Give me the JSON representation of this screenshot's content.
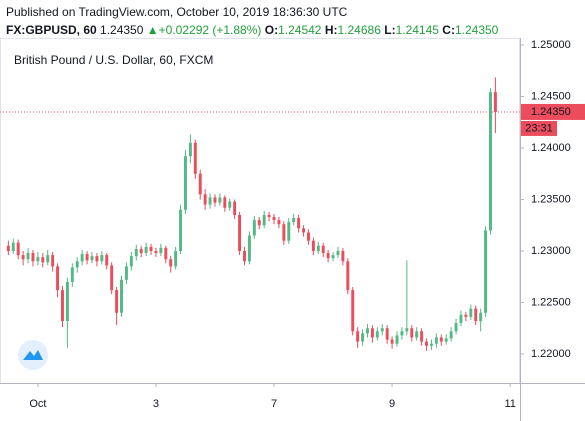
{
  "header": {
    "published": "Published on TradingView.com, October 10, 2019 18:36:30 UTC",
    "symbol": "FX:GBPUSD, 60",
    "last": "1.24350",
    "change": "+0.02292 (+1.88%)",
    "ohlc": [
      {
        "label": "O:",
        "value": "1.24542"
      },
      {
        "label": "H:",
        "value": "1.24686"
      },
      {
        "label": "L:",
        "value": "1.24145"
      },
      {
        "label": "C:",
        "value": "1.24350"
      }
    ]
  },
  "chart_data": {
    "type": "candlestick",
    "title": "British Pound / U.S. Dollar, 60, FXCM",
    "up_color": "#53b987",
    "down_color": "#eb4d5c",
    "x": [
      0,
      1,
      2,
      3,
      4,
      5,
      6,
      7,
      8,
      9,
      10,
      11,
      12,
      13,
      14,
      15,
      16,
      17,
      18,
      19,
      20,
      21,
      22,
      23,
      24,
      25,
      26,
      27,
      28,
      29,
      30,
      31,
      32,
      33,
      34,
      35,
      36,
      37,
      38,
      39,
      40,
      41,
      42,
      43,
      44,
      45,
      46,
      47,
      48,
      49,
      50,
      51,
      52,
      53,
      54,
      55,
      56,
      57,
      58,
      59,
      60,
      61,
      62,
      63,
      64,
      65,
      66,
      67,
      68,
      69,
      70,
      71,
      72,
      73,
      74,
      75,
      76,
      77,
      78,
      79,
      80,
      81,
      82,
      83,
      84,
      85,
      86,
      87,
      88,
      89,
      90,
      91,
      92,
      93,
      94,
      95,
      96,
      97,
      98,
      99
    ],
    "open": [
      1.2305,
      1.23,
      1.2308,
      1.2296,
      1.2292,
      1.2298,
      1.229,
      1.2294,
      1.2289,
      1.2296,
      1.2285,
      1.2262,
      1.2232,
      1.227,
      1.2284,
      1.229,
      1.2297,
      1.2291,
      1.2295,
      1.229,
      1.2296,
      1.2286,
      1.2262,
      1.224,
      1.2272,
      1.2285,
      1.2295,
      1.2302,
      1.2298,
      1.2304,
      1.23,
      1.2298,
      1.2303,
      1.2292,
      1.2285,
      1.23,
      1.234,
      1.2392,
      1.2405,
      1.2375,
      1.2355,
      1.2345,
      1.2352,
      1.2347,
      1.2352,
      1.2342,
      1.2348,
      1.2335,
      1.23,
      1.229,
      1.2315,
      1.233,
      1.2325,
      1.2335,
      1.2333,
      1.233,
      1.2326,
      1.231,
      1.2328,
      1.2332,
      1.2322,
      1.2318,
      1.231,
      1.23,
      1.2305,
      1.2298,
      1.2293,
      1.2296,
      1.23,
      1.229,
      1.2262,
      1.2222,
      1.2212,
      1.222,
      1.2225,
      1.2216,
      1.2222,
      1.2225,
      1.2214,
      1.221,
      1.2218,
      1.2222,
      1.2225,
      1.2216,
      1.2222,
      1.2212,
      1.2208,
      1.221,
      1.2216,
      1.2212,
      1.2215,
      1.2222,
      1.223,
      1.2238,
      1.2236,
      1.2244,
      1.2232,
      1.224,
      1.232,
      1.24542
    ],
    "high": [
      1.231,
      1.2312,
      1.2311,
      1.23,
      1.2303,
      1.2301,
      1.2299,
      1.2298,
      1.2301,
      1.2299,
      1.2288,
      1.2266,
      1.2274,
      1.2288,
      1.2294,
      1.2301,
      1.23,
      1.2299,
      1.2298,
      1.23,
      1.2298,
      1.2289,
      1.2265,
      1.2276,
      1.2289,
      1.2299,
      1.2306,
      1.2305,
      1.2308,
      1.2307,
      1.2303,
      1.2307,
      1.2305,
      1.2295,
      1.2304,
      1.2345,
      1.2398,
      1.2413,
      1.2408,
      1.2379,
      1.236,
      1.2356,
      1.2355,
      1.2356,
      1.2354,
      1.2351,
      1.235,
      1.2338,
      1.2304,
      1.2319,
      1.2334,
      1.2333,
      1.2339,
      1.2338,
      1.2336,
      1.2333,
      1.2329,
      1.2332,
      1.2336,
      1.2335,
      1.2325,
      1.2321,
      1.2313,
      1.2309,
      1.2308,
      1.2301,
      1.2299,
      1.2304,
      1.2303,
      1.2293,
      1.2265,
      1.2226,
      1.2224,
      1.2229,
      1.2228,
      1.2226,
      1.2229,
      1.2228,
      1.2217,
      1.2222,
      1.2226,
      1.2291,
      1.2228,
      1.2226,
      1.2225,
      1.2215,
      1.2214,
      1.222,
      1.2219,
      1.2219,
      1.2226,
      1.2234,
      1.2242,
      1.2241,
      1.2248,
      1.2247,
      1.2244,
      1.2324,
      1.2458,
      1.24686
    ],
    "low": [
      1.2296,
      1.2297,
      1.2292,
      1.2286,
      1.2288,
      1.2285,
      1.2286,
      1.2284,
      1.2286,
      1.228,
      1.2255,
      1.2226,
      1.2206,
      1.2265,
      1.2279,
      1.2286,
      1.2287,
      1.2288,
      1.2285,
      1.2287,
      1.2282,
      1.2258,
      1.2228,
      1.2236,
      1.2268,
      1.2281,
      1.2291,
      1.2294,
      1.2295,
      1.2296,
      1.2294,
      1.2295,
      1.2288,
      1.2279,
      1.2282,
      1.2297,
      1.2336,
      1.2385,
      1.237,
      1.235,
      1.234,
      1.2341,
      1.2343,
      1.2344,
      1.2338,
      1.2339,
      1.2331,
      1.2296,
      1.2286,
      1.2287,
      1.2312,
      1.2321,
      1.2322,
      1.2329,
      1.2326,
      1.2322,
      1.2306,
      1.2307,
      1.2325,
      1.2318,
      1.2314,
      1.2306,
      1.2296,
      1.2297,
      1.2294,
      1.2289,
      1.229,
      1.2293,
      1.2286,
      1.2258,
      1.2218,
      1.2206,
      1.2208,
      1.2216,
      1.2211,
      1.2213,
      1.2218,
      1.221,
      1.2205,
      1.2207,
      1.2214,
      1.2218,
      1.2212,
      1.2213,
      1.2208,
      1.2203,
      1.2204,
      1.2206,
      1.2208,
      1.2209,
      1.2212,
      1.2219,
      1.2227,
      1.2232,
      1.2233,
      1.2228,
      1.2222,
      1.2236,
      1.2316,
      1.24145
    ],
    "close": [
      1.23,
      1.2308,
      1.2296,
      1.2292,
      1.2298,
      1.229,
      1.2294,
      1.2289,
      1.2296,
      1.2285,
      1.2262,
      1.2232,
      1.227,
      1.2284,
      1.229,
      1.2297,
      1.2291,
      1.2295,
      1.229,
      1.2296,
      1.2286,
      1.2262,
      1.224,
      1.2272,
      1.2285,
      1.2295,
      1.2302,
      1.2298,
      1.2304,
      1.23,
      1.2298,
      1.2303,
      1.2292,
      1.2285,
      1.23,
      1.234,
      1.2392,
      1.2405,
      1.2375,
      1.2355,
      1.2345,
      1.2352,
      1.2347,
      1.2352,
      1.2342,
      1.2348,
      1.2335,
      1.23,
      1.229,
      1.2315,
      1.233,
      1.2325,
      1.2335,
      1.2333,
      1.233,
      1.2326,
      1.231,
      1.2328,
      1.2332,
      1.2322,
      1.2318,
      1.231,
      1.23,
      1.2305,
      1.2298,
      1.2293,
      1.2296,
      1.23,
      1.229,
      1.2262,
      1.2222,
      1.2212,
      1.222,
      1.2225,
      1.2216,
      1.2222,
      1.2225,
      1.2214,
      1.221,
      1.2218,
      1.2222,
      1.2225,
      1.2216,
      1.2222,
      1.2212,
      1.2208,
      1.221,
      1.2216,
      1.2212,
      1.2215,
      1.2222,
      1.223,
      1.2238,
      1.2236,
      1.2244,
      1.2232,
      1.224,
      1.232,
      1.24542,
      1.2435
    ],
    "xlim": [
      -1.7,
      104
    ],
    "xticks": [
      {
        "value": 6,
        "label": "Oct"
      },
      {
        "value": 30,
        "label": "3"
      },
      {
        "value": 54,
        "label": "7"
      },
      {
        "value": 78,
        "label": "9"
      },
      {
        "value": 102,
        "label": "11"
      }
    ],
    "ylim": [
      1.21718,
      1.25068
    ],
    "yticks": [
      {
        "value": 1.22,
        "label": "1.22000"
      },
      {
        "value": 1.225,
        "label": "1.22500"
      },
      {
        "value": 1.23,
        "label": "1.23000"
      },
      {
        "value": 1.235,
        "label": "1.23500"
      },
      {
        "value": 1.24,
        "label": "1.24000"
      },
      {
        "value": 1.245,
        "label": "1.24500"
      },
      {
        "value": 1.25,
        "label": "1.25000"
      }
    ],
    "last_price": {
      "value": 1.2435,
      "label": "1.24350"
    },
    "countdown": "23:31"
  }
}
